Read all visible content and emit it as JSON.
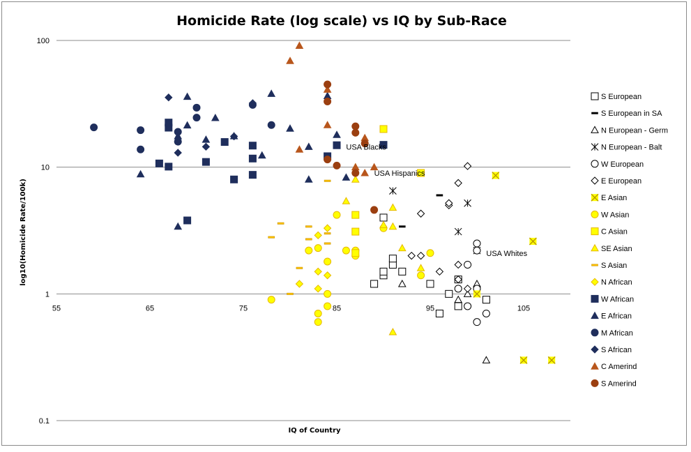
{
  "chart_data": {
    "type": "scatter",
    "title": "Homicide Rate (log scale) vs IQ by Sub-Race",
    "xlabel": "IQ of Country",
    "ylabel": "log10(Homicide Rate/100k)",
    "xlim": [
      55,
      110
    ],
    "ylim": [
      0.1,
      100
    ],
    "y_log_scale": true,
    "grid": "horizontal",
    "legend_position": "right",
    "x_ticks": [
      "55",
      "65",
      "75",
      "85",
      "95",
      "105"
    ],
    "y_ticks": [
      "100",
      "10",
      "1",
      "0.1"
    ],
    "annotations": [
      {
        "text": "USA Blacks",
        "x": 86,
        "y": 14.5
      },
      {
        "text": "USA Hispanics",
        "x": 89,
        "y": 9
      },
      {
        "text": "USA Whites",
        "x": 101,
        "y": 2.1
      }
    ],
    "series": [
      {
        "name": "S European",
        "marker": "square-open",
        "color": "#000000",
        "points": [
          [
            89,
            1.2
          ],
          [
            90,
            1.4
          ],
          [
            90,
            1.5
          ],
          [
            90,
            4
          ],
          [
            91,
            1.7
          ],
          [
            91,
            1.9
          ],
          [
            92,
            1.5
          ],
          [
            95,
            1.2
          ],
          [
            96,
            0.7
          ],
          [
            97,
            1
          ],
          [
            98,
            0.8
          ],
          [
            98,
            1.3
          ],
          [
            101,
            0.9
          ]
        ]
      },
      {
        "name": "S European in SA",
        "marker": "dash",
        "color": "#000000",
        "points": [
          [
            92,
            3.4
          ],
          [
            96,
            6
          ]
        ]
      },
      {
        "name": "N European - Germ",
        "marker": "triangle-open",
        "color": "#000000",
        "points": [
          [
            92,
            1.2
          ],
          [
            98,
            0.9
          ],
          [
            99,
            1
          ],
          [
            100,
            1.2
          ],
          [
            101,
            0.3
          ]
        ]
      },
      {
        "name": "N European - Balt",
        "marker": "asterisk",
        "color": "#000000",
        "points": [
          [
            91,
            6.5
          ],
          [
            98,
            3.1
          ],
          [
            99,
            5.2
          ],
          [
            100,
            2.2
          ]
        ]
      },
      {
        "name": "W European",
        "marker": "circle-open",
        "color": "#000000",
        "points": [
          [
            98,
            1.1
          ],
          [
            99,
            0.8
          ],
          [
            99,
            1.7
          ],
          [
            100,
            1.1
          ],
          [
            100,
            0.6
          ],
          [
            100,
            2.2
          ],
          [
            100,
            2.5
          ],
          [
            101,
            0.7
          ]
        ]
      },
      {
        "name": "E European",
        "marker": "diamond-open",
        "color": "#000000",
        "points": [
          [
            93,
            2
          ],
          [
            94,
            2
          ],
          [
            94,
            4.3
          ],
          [
            96,
            1.5
          ],
          [
            97,
            5
          ],
          [
            97,
            5.2
          ],
          [
            98,
            7.5
          ],
          [
            99,
            10.2
          ],
          [
            98,
            1.7
          ],
          [
            98,
            1.3
          ],
          [
            99,
            1.1
          ]
        ]
      },
      {
        "name": "E Asian",
        "marker": "x-filled",
        "color": "#ffff00",
        "points": [
          [
            100,
            1
          ],
          [
            102,
            8.6
          ],
          [
            106,
            2.6
          ],
          [
            105,
            0.3
          ],
          [
            108,
            0.3
          ]
        ]
      },
      {
        "name": "W Asian",
        "marker": "circle",
        "color": "#ffff00",
        "points": [
          [
            78,
            0.9
          ],
          [
            82,
            2.2
          ],
          [
            83,
            2.3
          ],
          [
            83,
            0.7
          ],
          [
            83,
            0.6
          ],
          [
            84,
            1.8
          ],
          [
            84,
            1
          ],
          [
            84,
            0.8
          ],
          [
            85,
            4.2
          ],
          [
            86,
            2.2
          ],
          [
            87,
            2.2
          ],
          [
            87,
            2
          ],
          [
            90,
            3.3
          ],
          [
            94,
            1.4
          ],
          [
            95,
            2.1
          ]
        ]
      },
      {
        "name": "C Asian",
        "marker": "square",
        "color": "#ffff00",
        "points": [
          [
            87,
            4.2
          ],
          [
            87,
            3.1
          ],
          [
            87,
            2.1
          ],
          [
            90,
            20
          ],
          [
            94,
            9
          ]
        ]
      },
      {
        "name": "SE Asian",
        "marker": "triangle",
        "color": "#ffff00",
        "points": [
          [
            86,
            5.4
          ],
          [
            87,
            8
          ],
          [
            87,
            10
          ],
          [
            90,
            3.5
          ],
          [
            91,
            4.8
          ],
          [
            91,
            3.4
          ],
          [
            91,
            0.5
          ],
          [
            92,
            2.3
          ],
          [
            94,
            1.6
          ]
        ]
      },
      {
        "name": "S Asian",
        "marker": "dash",
        "color": "#ffc000",
        "points": [
          [
            78,
            2.8
          ],
          [
            79,
            3.6
          ],
          [
            80,
            1
          ],
          [
            81,
            1.6
          ],
          [
            82,
            3.4
          ],
          [
            82,
            2.7
          ],
          [
            84,
            3
          ],
          [
            84,
            2.5
          ],
          [
            84,
            7.8
          ]
        ]
      },
      {
        "name": "N African",
        "marker": "diamond",
        "color": "#ffff00",
        "points": [
          [
            81,
            1.2
          ],
          [
            83,
            1.5
          ],
          [
            83,
            2.9
          ],
          [
            83,
            1.1
          ],
          [
            84,
            1.4
          ],
          [
            84,
            3.3
          ]
        ]
      },
      {
        "name": "W African",
        "marker": "square",
        "color": "#1f2e5c",
        "points": [
          [
            66,
            10.7
          ],
          [
            67,
            10.1
          ],
          [
            67,
            20.5
          ],
          [
            67,
            22.5
          ],
          [
            69,
            3.8
          ],
          [
            71,
            11
          ],
          [
            73,
            15.8
          ],
          [
            74,
            8
          ],
          [
            76,
            8.7
          ],
          [
            76,
            11.7
          ],
          [
            76,
            14.8
          ],
          [
            84,
            12.2
          ],
          [
            85,
            14.9
          ],
          [
            90,
            15
          ]
        ]
      },
      {
        "name": "E African",
        "marker": "triangle",
        "color": "#1f2e5c",
        "points": [
          [
            64,
            8.8
          ],
          [
            68,
            3.4
          ],
          [
            68,
            17.6
          ],
          [
            69,
            21.4
          ],
          [
            69,
            36
          ],
          [
            71,
            16.5
          ],
          [
            72,
            24.5
          ],
          [
            74,
            17.6
          ],
          [
            77,
            12.4
          ],
          [
            78,
            38
          ],
          [
            80,
            20.2
          ],
          [
            82,
            8
          ],
          [
            82,
            14.5
          ],
          [
            84,
            36.5
          ],
          [
            85,
            18
          ],
          [
            86,
            8.3
          ]
        ]
      },
      {
        "name": "M African",
        "marker": "circle",
        "color": "#1f2e5c",
        "points": [
          [
            59,
            20.6
          ],
          [
            64,
            19.6
          ],
          [
            64,
            13.8
          ],
          [
            68,
            15.9
          ],
          [
            68,
            19
          ],
          [
            70,
            24.6
          ],
          [
            70,
            29.5
          ],
          [
            76,
            31
          ],
          [
            78,
            21.5
          ]
        ]
      },
      {
        "name": "S African",
        "marker": "diamond",
        "color": "#1f2e5c",
        "points": [
          [
            67,
            35.5
          ],
          [
            68,
            13
          ],
          [
            71,
            14.5
          ],
          [
            74,
            17.5
          ],
          [
            76,
            32
          ]
        ]
      },
      {
        "name": "C Amerind",
        "marker": "triangle",
        "color": "#b8561c",
        "points": [
          [
            80,
            69
          ],
          [
            81,
            13.8
          ],
          [
            81,
            91
          ],
          [
            84,
            21.5
          ],
          [
            84,
            41
          ],
          [
            87,
            10
          ],
          [
            88,
            9
          ],
          [
            88,
            17
          ],
          [
            89,
            10
          ]
        ]
      },
      {
        "name": "S Amerind",
        "marker": "circle",
        "color": "#9b3f10",
        "points": [
          [
            84,
            11.5
          ],
          [
            84,
            33
          ],
          [
            84,
            45
          ],
          [
            85,
            10.3
          ],
          [
            87,
            9
          ],
          [
            87,
            18.7
          ],
          [
            87,
            21
          ],
          [
            88,
            15.4
          ],
          [
            89,
            4.6
          ]
        ]
      }
    ]
  }
}
